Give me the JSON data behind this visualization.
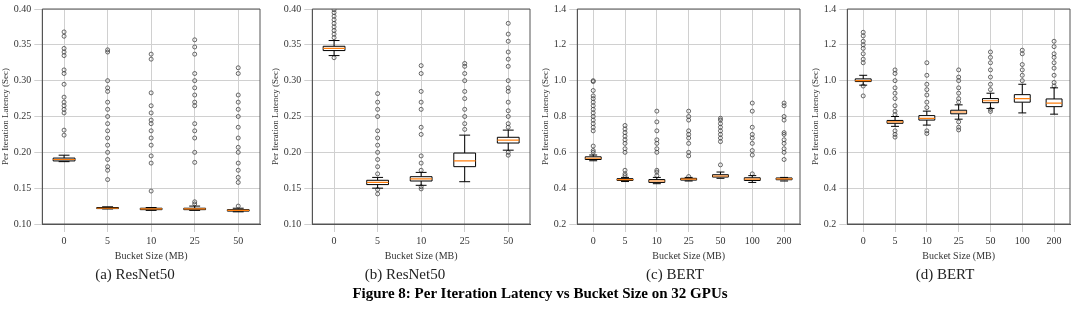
{
  "chart_data": [
    {
      "type": "box",
      "title": "(a) ResNet50",
      "xlabel": "Bucket Size (MB)",
      "ylabel": "Per Iteration Latency (Sec)",
      "categories": [
        "0",
        "5",
        "10",
        "25",
        "50"
      ],
      "ylim": [
        0.1,
        0.4
      ],
      "yticks": [
        {
          "value": 0.1,
          "label": "0.10"
        },
        0.15,
        {
          "value": 0.2,
          "label": "0.20"
        },
        0.25,
        {
          "value": 0.3,
          "label": "0.30"
        },
        0.35,
        {
          "value": 0.4,
          "label": "0.40"
        }
      ],
      "grid": true,
      "annotations": [
        "Figure 8: Per Iteration Latency vs Bucket Size on 32 GPUs"
      ],
      "boxes": [
        {
          "low": 0.187,
          "q1": 0.188,
          "median": 0.19,
          "q3": 0.192,
          "high": 0.196,
          "outliers": [
            0.224,
            0.231,
            0.255,
            0.26,
            0.265,
            0.27,
            0.277,
            0.295,
            0.31,
            0.315,
            0.335,
            0.34,
            0.345,
            0.362,
            0.368
          ]
        },
        {
          "low": 0.121,
          "q1": 0.1215,
          "median": 0.122,
          "q3": 0.123,
          "high": 0.124,
          "outliers": [
            0.162,
            0.175,
            0.18,
            0.19,
            0.2,
            0.21,
            0.22,
            0.23,
            0.24,
            0.25,
            0.26,
            0.27,
            0.285,
            0.29,
            0.3,
            0.34,
            0.343
          ]
        },
        {
          "low": 0.119,
          "q1": 0.12,
          "median": 0.121,
          "q3": 0.122,
          "high": 0.123,
          "outliers": [
            0.146,
            0.185,
            0.195,
            0.21,
            0.22,
            0.23,
            0.24,
            0.245,
            0.255,
            0.265,
            0.283,
            0.33,
            0.337
          ]
        },
        {
          "low": 0.119,
          "q1": 0.12,
          "median": 0.121,
          "q3": 0.122,
          "high": 0.125,
          "outliers": [
            0.128,
            0.131,
            0.186,
            0.2,
            0.22,
            0.23,
            0.24,
            0.265,
            0.27,
            0.28,
            0.29,
            0.3,
            0.31,
            0.337,
            0.347,
            0.357
          ]
        },
        {
          "low": 0.117,
          "q1": 0.118,
          "median": 0.119,
          "q3": 0.12,
          "high": 0.122,
          "outliers": [
            0.125,
            0.158,
            0.165,
            0.175,
            0.185,
            0.2,
            0.207,
            0.22,
            0.235,
            0.25,
            0.26,
            0.27,
            0.28,
            0.31,
            0.318
          ]
        }
      ]
    },
    {
      "type": "box",
      "title": "(b) ResNet50",
      "xlabel": "Bucket Size (MB)",
      "ylabel": "Per Iteration Latency (Sec)",
      "categories": [
        "0",
        "5",
        "10",
        "25",
        "50"
      ],
      "ylim": [
        0.1,
        0.4
      ],
      "yticks": [
        {
          "value": 0.1,
          "label": "0.10"
        },
        0.15,
        {
          "value": 0.2,
          "label": "0.20"
        },
        0.25,
        {
          "value": 0.3,
          "label": "0.30"
        },
        0.35,
        {
          "value": 0.4,
          "label": "0.40"
        }
      ],
      "grid": true,
      "boxes": [
        {
          "low": 0.335,
          "q1": 0.342,
          "median": 0.345,
          "q3": 0.348,
          "high": 0.356,
          "outliers": [
            0.332,
            0.36,
            0.365,
            0.37,
            0.375,
            0.38,
            0.385,
            0.39,
            0.395,
            0.399
          ]
        },
        {
          "low": 0.15,
          "q1": 0.155,
          "median": 0.158,
          "q3": 0.161,
          "high": 0.165,
          "outliers": [
            0.142,
            0.148,
            0.17,
            0.18,
            0.19,
            0.2,
            0.21,
            0.22,
            0.23,
            0.25,
            0.26,
            0.27,
            0.282
          ]
        },
        {
          "low": 0.154,
          "q1": 0.16,
          "median": 0.163,
          "q3": 0.166,
          "high": 0.172,
          "outliers": [
            0.149,
            0.152,
            0.175,
            0.185,
            0.195,
            0.225,
            0.235,
            0.26,
            0.27,
            0.285,
            0.31,
            0.321
          ]
        },
        {
          "low": 0.159,
          "q1": 0.18,
          "median": 0.188,
          "q3": 0.199,
          "high": 0.224,
          "outliers": [
            0.232,
            0.24,
            0.25,
            0.26,
            0.275,
            0.285,
            0.3,
            0.31,
            0.32,
            0.324
          ]
        },
        {
          "low": 0.203,
          "q1": 0.213,
          "median": 0.217,
          "q3": 0.221,
          "high": 0.231,
          "outliers": [
            0.196,
            0.2,
            0.235,
            0.24,
            0.25,
            0.258,
            0.27,
            0.285,
            0.29,
            0.3,
            0.32,
            0.33,
            0.34,
            0.355,
            0.365,
            0.38
          ]
        }
      ]
    },
    {
      "type": "box",
      "title": "(c) BERT",
      "xlabel": "Bucket Size (MB)",
      "ylabel": "Per Iteration Latency (Sec)",
      "categories": [
        "0",
        "5",
        "10",
        "25",
        "50",
        "100",
        "200"
      ],
      "ylim": [
        0.2,
        1.4
      ],
      "yticks": [
        0.2,
        0.4,
        0.6,
        0.8,
        {
          "value": 1,
          "label": "1.0"
        },
        1.2,
        1.4
      ],
      "grid": true,
      "boxes": [
        {
          "low": 0.553,
          "q1": 0.56,
          "median": 0.567,
          "q3": 0.575,
          "high": 0.585,
          "outliers": [
            0.6,
            0.61,
            0.635,
            0.72,
            0.74,
            0.76,
            0.78,
            0.8,
            0.82,
            0.84,
            0.86,
            0.88,
            0.9,
            0.915,
            0.945,
            0.995,
            1.0
          ]
        },
        {
          "low": 0.437,
          "q1": 0.443,
          "median": 0.448,
          "q3": 0.453,
          "high": 0.46,
          "outliers": [
            0.47,
            0.48,
            0.5,
            0.6,
            0.62,
            0.65,
            0.67,
            0.69,
            0.71,
            0.73,
            0.75
          ]
        },
        {
          "low": 0.425,
          "q1": 0.432,
          "median": 0.44,
          "q3": 0.448,
          "high": 0.46,
          "outliers": [
            0.47,
            0.49,
            0.5,
            0.6,
            0.62,
            0.65,
            0.67,
            0.72,
            0.77,
            0.83
          ]
        },
        {
          "low": 0.44,
          "q1": 0.445,
          "median": 0.45,
          "q3": 0.455,
          "high": 0.46,
          "outliers": [
            0.465,
            0.58,
            0.6,
            0.65,
            0.68,
            0.7,
            0.72,
            0.78,
            0.8,
            0.83
          ]
        },
        {
          "low": 0.455,
          "q1": 0.462,
          "median": 0.468,
          "q3": 0.475,
          "high": 0.49,
          "outliers": [
            0.53,
            0.66,
            0.68,
            0.7,
            0.72,
            0.74,
            0.76,
            0.78,
            0.79
          ]
        },
        {
          "low": 0.432,
          "q1": 0.443,
          "median": 0.45,
          "q3": 0.458,
          "high": 0.47,
          "outliers": [
            0.48,
            0.585,
            0.61,
            0.65,
            0.68,
            0.7,
            0.74,
            0.83,
            0.875
          ]
        },
        {
          "low": 0.44,
          "q1": 0.447,
          "median": 0.452,
          "q3": 0.457,
          "high": 0.46,
          "outliers": [
            0.56,
            0.6,
            0.62,
            0.65,
            0.67,
            0.7,
            0.71,
            0.78,
            0.8,
            0.86,
            0.875
          ]
        }
      ]
    },
    {
      "type": "box",
      "title": "(d) BERT",
      "xlabel": "Bucket Size (MB)",
      "ylabel": "Per Iteration Latency (Sec)",
      "categories": [
        "0",
        "5",
        "10",
        "25",
        "50",
        "100",
        "200"
      ],
      "ylim": [
        0.2,
        1.4
      ],
      "yticks": [
        0.2,
        0.4,
        0.6,
        0.8,
        {
          "value": 1,
          "label": "1.0"
        },
        1.2,
        1.4
      ],
      "grid": true,
      "boxes": [
        {
          "low": 0.975,
          "q1": 0.995,
          "median": 1.0,
          "q3": 1.01,
          "high": 1.03,
          "outliers": [
            0.915,
            0.97,
            1.1,
            1.12,
            1.15,
            1.18,
            1.2,
            1.22,
            1.25,
            1.27
          ]
        },
        {
          "low": 0.745,
          "q1": 0.762,
          "median": 0.77,
          "q3": 0.778,
          "high": 0.8,
          "outliers": [
            0.685,
            0.7,
            0.72,
            0.81,
            0.83,
            0.86,
            0.9,
            0.93,
            0.96,
            1.0,
            1.04,
            1.06
          ]
        },
        {
          "low": 0.752,
          "q1": 0.78,
          "median": 0.79,
          "q3": 0.805,
          "high": 0.83,
          "outliers": [
            0.705,
            0.72,
            0.85,
            0.88,
            0.92,
            0.95,
            0.98,
            1.03,
            1.1
          ]
        },
        {
          "low": 0.785,
          "q1": 0.815,
          "median": 0.825,
          "q3": 0.835,
          "high": 0.865,
          "outliers": [
            0.725,
            0.74,
            0.77,
            0.88,
            0.9,
            0.93,
            0.96,
            1.0,
            1.02,
            1.06
          ]
        },
        {
          "low": 0.845,
          "q1": 0.877,
          "median": 0.888,
          "q3": 0.9,
          "high": 0.93,
          "outliers": [
            0.828,
            0.84,
            0.95,
            0.98,
            1.02,
            1.06,
            1.1,
            1.13,
            1.16
          ]
        },
        {
          "low": 0.82,
          "q1": 0.88,
          "median": 0.9,
          "q3": 0.922,
          "high": 0.98,
          "outliers": [
            1.0,
            1.03,
            1.06,
            1.09,
            1.15,
            1.17
          ]
        },
        {
          "low": 0.813,
          "q1": 0.855,
          "median": 0.875,
          "q3": 0.898,
          "high": 0.96,
          "outliers": [
            0.97,
            0.99,
            1.03,
            1.07,
            1.1,
            1.13,
            1.15,
            1.19,
            1.22
          ]
        }
      ]
    }
  ]
}
